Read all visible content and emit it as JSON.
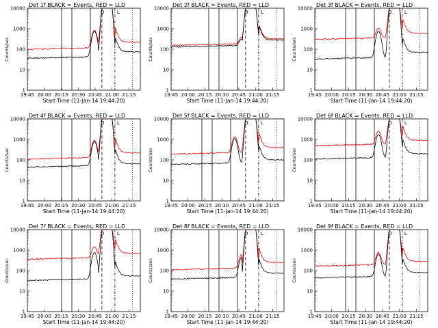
{
  "figure": {
    "panels": [
      {
        "title": "Det  1f  BLACK = Events, RED = LLD",
        "events": [
          90,
          105,
          132
        ],
        "peaks": {
          "b": 1100,
          "r": 1100
        },
        "baseR": 180,
        "baseB": 65,
        "postR": 220,
        "postB": 75
      },
      {
        "title": "Det  2f  BLACK = Events, RED = LLD",
        "events": [
          95,
          110,
          137
        ],
        "peaks": {
          "b": 250,
          "r": 300
        },
        "baseR": 280,
        "baseB": 230,
        "postR": 320,
        "postB": 280
      },
      {
        "title": "Det  3f  BLACK = Events, RED = LLD",
        "events": [
          85,
          100,
          127
        ],
        "peaks": {
          "b": 1100,
          "r": 1100
        },
        "baseR": 550,
        "baseB": 60,
        "postR": 600,
        "postB": 70
      },
      {
        "title": "Det  4f  BLACK = Events, RED = LLD",
        "events": [
          90,
          105,
          132
        ],
        "peaks": {
          "b": 1100,
          "r": 1200
        },
        "baseR": 200,
        "baseB": 80,
        "postR": 220,
        "postB": 65
      },
      {
        "title": "Det  5f  BLACK = Events, RED = LLD",
        "events": [
          85,
          100,
          127
        ],
        "peaks": {
          "b": 1600,
          "r": 1800
        },
        "baseR": 350,
        "baseB": 110,
        "postR": 400,
        "postB": 100
      },
      {
        "title": "Det  6f  BLACK = Events, RED = LLD",
        "events": [
          85,
          100,
          127
        ],
        "peaks": {
          "b": 2500,
          "r": 3000
        },
        "baseR": 900,
        "baseB": 200,
        "postR": 900,
        "postB": 200
      },
      {
        "title": "Det  7f  BLACK = Events, RED = LLD",
        "events": [
          90,
          105,
          132
        ],
        "peaks": {
          "b": 1100,
          "r": 1600
        },
        "baseR": 650,
        "baseB": 60,
        "postR": 700,
        "postB": 55
      },
      {
        "title": "Det  8f  BLACK = Events, RED = LLD",
        "events": [
          95,
          110,
          137
        ],
        "peaks": {
          "b": 600,
          "r": 700
        },
        "baseR": 200,
        "baseB": 70,
        "postR": 250,
        "postB": 75
      },
      {
        "title": "Det  9f  BLACK = Events, RED = LLD",
        "events": [
          85,
          100,
          127
        ],
        "peaks": {
          "b": 900,
          "r": 900
        },
        "baseR": 300,
        "baseB": 80,
        "postR": 280,
        "postB": 80
      }
    ],
    "ylabel": "Counts/sec",
    "xlabel": "Start Time (11-Jan-14 19:44:20)",
    "xtick_labels": [
      "19:45",
      "20:00",
      "20:15",
      "20:30",
      "20:45",
      "21:00",
      "21:15"
    ],
    "ytick_labels": [
      "1",
      "10",
      "100",
      "1000",
      "10000"
    ],
    "annotations": [
      "O",
      "L"
    ],
    "colors": {
      "events": "#000000",
      "lld": "#ee0000"
    }
  },
  "chart_data": [
    {
      "type": "line",
      "title": "Det  1f  BLACK = Events, RED = LLD",
      "xlabel": "Start Time (11-Jan-14 19:44:20)",
      "ylabel": "Counts/sec",
      "x": [
        "19:45",
        "20:00",
        "20:15",
        "20:30",
        "20:45",
        "21:00",
        "21:15"
      ],
      "ylim": [
        1,
        10000
      ],
      "yscale": "log",
      "series": [
        {
          "name": "BLACK = Events",
          "values": [
            80,
            70,
            110,
            90,
            10000,
            80,
            70
          ]
        },
        {
          "name": "RED = LLD",
          "values": [
            200,
            180,
            230,
            220,
            10000,
            230,
            220
          ]
        }
      ]
    }
  ]
}
